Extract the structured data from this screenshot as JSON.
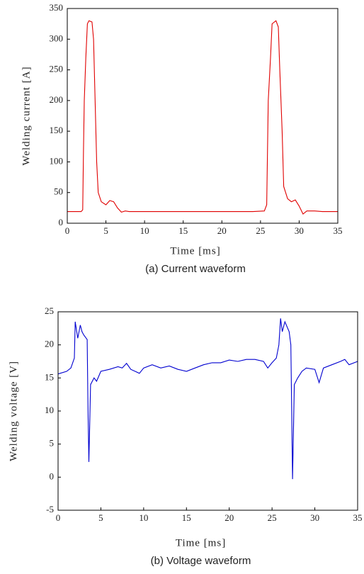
{
  "chart_data": [
    {
      "type": "line",
      "xlabel": "Time [ms]",
      "ylabel": "Welding current [A]",
      "caption": "(a) Current waveform",
      "xlim": [
        0,
        35
      ],
      "xticks": [
        0,
        5,
        10,
        15,
        20,
        25,
        30,
        35
      ],
      "ylim": [
        0,
        350
      ],
      "yticks": [
        0,
        50,
        100,
        150,
        200,
        250,
        300,
        350
      ],
      "x": [
        0,
        1,
        1.8,
        2.0,
        2.1,
        2.2,
        2.4,
        2.6,
        2.8,
        3.2,
        3.4,
        3.6,
        3.8,
        4.0,
        4.4,
        5.0,
        5.5,
        6.0,
        6.5,
        7.0,
        7.5,
        8.0,
        10,
        15,
        20,
        24,
        25.5,
        25.8,
        26.0,
        26.3,
        26.5,
        27.0,
        27.3,
        27.5,
        27.8,
        28.0,
        28.5,
        29.0,
        29.5,
        30.0,
        30.5,
        31,
        32,
        33,
        34,
        35
      ],
      "series": [
        {
          "name": "Welding current",
          "color": "#e00000",
          "values": [
            19,
            19,
            19,
            22,
            120,
            200,
            270,
            325,
            330,
            328,
            300,
            200,
            100,
            50,
            35,
            30,
            37,
            35,
            25,
            18,
            20,
            19,
            19,
            19,
            19,
            19,
            20,
            30,
            200,
            270,
            325,
            330,
            320,
            250,
            150,
            60,
            40,
            35,
            38,
            28,
            15,
            20,
            20,
            19,
            19,
            19
          ]
        }
      ]
    },
    {
      "type": "line",
      "xlabel": "Time [ms]",
      "ylabel": "Welding voltage [V]",
      "caption": "(b) Voltage waveform",
      "xlim": [
        0,
        35
      ],
      "xticks": [
        0,
        5,
        10,
        15,
        20,
        25,
        30,
        35
      ],
      "ylim": [
        -5,
        25
      ],
      "yticks": [
        -5,
        0,
        5,
        10,
        15,
        20,
        25
      ],
      "x": [
        0,
        1,
        1.5,
        1.9,
        2.0,
        2.3,
        2.6,
        2.8,
        3.0,
        3.4,
        3.5,
        3.6,
        3.8,
        4.2,
        4.5,
        5,
        6,
        7,
        7.5,
        8,
        8.5,
        9,
        9.5,
        10,
        11,
        12,
        13,
        14,
        15,
        16,
        17,
        18,
        19,
        20,
        21,
        22,
        23,
        24,
        24.5,
        25,
        25.5,
        25.8,
        26,
        26.2,
        26.5,
        27,
        27.2,
        27.3,
        27.4,
        27.6,
        28,
        28.5,
        29,
        30,
        30.5,
        31,
        32,
        33,
        33.5,
        34,
        35
      ],
      "series": [
        {
          "name": "Welding voltage",
          "color": "#0000d0",
          "values": [
            15.6,
            16,
            16.5,
            18,
            23.5,
            21,
            23,
            22,
            21.5,
            20.8,
            10,
            2.3,
            14,
            15,
            14.5,
            16,
            16.3,
            16.7,
            16.5,
            17.2,
            16.3,
            16,
            15.7,
            16.5,
            17,
            16.5,
            16.8,
            16.3,
            16,
            16.5,
            17,
            17.3,
            17.3,
            17.7,
            17.5,
            17.8,
            17.8,
            17.5,
            16.5,
            17.3,
            18,
            20,
            24,
            22,
            23.5,
            22,
            20,
            10,
            -0.3,
            14,
            15,
            16,
            16.5,
            16.3,
            14.3,
            16.5,
            17,
            17.5,
            17.8,
            17,
            17.5
          ]
        }
      ]
    }
  ]
}
